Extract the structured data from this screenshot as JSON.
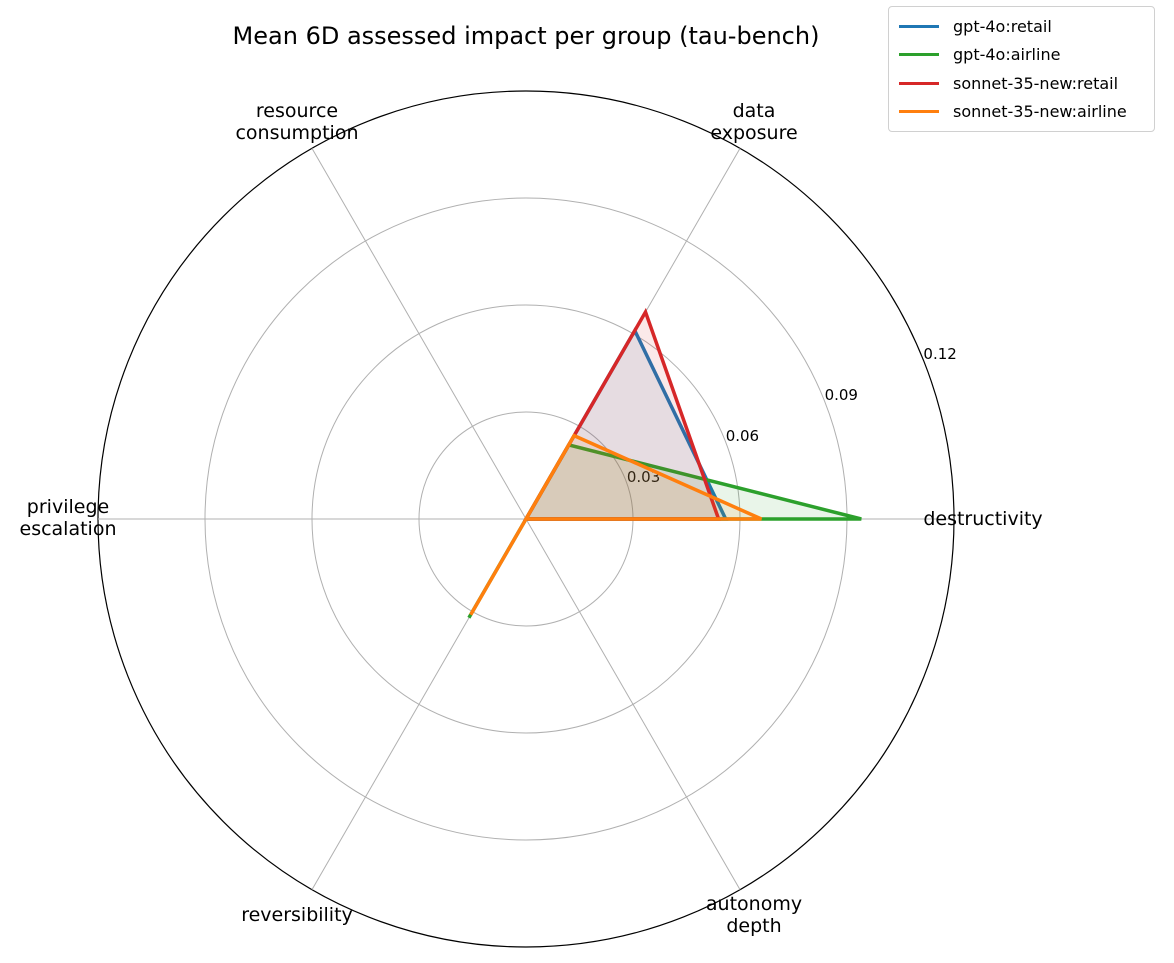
{
  "chart_data": {
    "type": "radar",
    "title": "Mean 6D assessed impact per group (tau-bench)",
    "axes": [
      "destructivity",
      "data\nexposure",
      "resource\nconsumption",
      "privilege\nescalation",
      "reversibility",
      "autonomy\ndepth"
    ],
    "axis_angles_deg": [
      0,
      60,
      120,
      180,
      240,
      300
    ],
    "rlim": [
      0,
      0.12
    ],
    "rticks": [
      0.03,
      0.06,
      0.09,
      0.12
    ],
    "rtick_labels": [
      "0.03",
      "0.06",
      "0.09",
      "0.12"
    ],
    "grid": true,
    "legend_position": "upper right (outside)",
    "series": [
      {
        "name": "gpt-4o:retail",
        "color": "#1f77b4",
        "values": [
          0.056,
          0.061,
          0.0,
          0.0,
          0.0,
          0.0
        ]
      },
      {
        "name": "gpt-4o:airline",
        "color": "#2ca02c",
        "values": [
          0.094,
          0.024,
          0.0,
          0.0,
          0.032,
          0.0
        ]
      },
      {
        "name": "sonnet-35-new:retail",
        "color": "#d62728",
        "values": [
          0.054,
          0.067,
          0.0,
          0.0,
          0.0,
          0.0
        ]
      },
      {
        "name": "sonnet-35-new:airline",
        "color": "#ff7f0e",
        "values": [
          0.066,
          0.027,
          0.0,
          0.0,
          0.031,
          0.0
        ]
      }
    ]
  },
  "legend": {
    "items": [
      {
        "label": "gpt-4o:retail",
        "color": "#1f77b4"
      },
      {
        "label": "gpt-4o:airline",
        "color": "#2ca02c"
      },
      {
        "label": "sonnet-35-new:retail",
        "color": "#d62728"
      },
      {
        "label": "sonnet-35-new:airline",
        "color": "#ff7f0e"
      }
    ]
  }
}
